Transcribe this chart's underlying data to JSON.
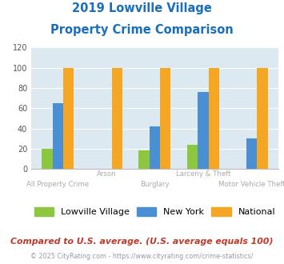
{
  "title_line1": "2019 Lowville Village",
  "title_line2": "Property Crime Comparison",
  "title_color": "#1a6fba",
  "categories": [
    "All Property Crime",
    "Arson",
    "Burglary",
    "Larceny & Theft",
    "Motor Vehicle Theft"
  ],
  "series": {
    "Lowville Village": [
      20,
      0,
      18,
      24,
      0
    ],
    "New York": [
      65,
      0,
      42,
      76,
      30
    ],
    "National": [
      100,
      100,
      100,
      100,
      100
    ]
  },
  "colors": {
    "Lowville Village": "#8dc63f",
    "New York": "#4a8fd4",
    "National": "#f5a623"
  },
  "ylim": [
    0,
    120
  ],
  "yticks": [
    0,
    20,
    40,
    60,
    80,
    100,
    120
  ],
  "plot_area_color": "#dce9f0",
  "footnote1": "Compared to U.S. average. (U.S. average equals 100)",
  "footnote2": "© 2025 CityRating.com - https://www.cityrating.com/crime-statistics/",
  "footnote1_color": "#c0392b",
  "footnote2_color": "#9999aa",
  "footnote2_link_color": "#4a8fd4",
  "xlabel_color": "#aaaaaa",
  "bar_width": 0.22
}
